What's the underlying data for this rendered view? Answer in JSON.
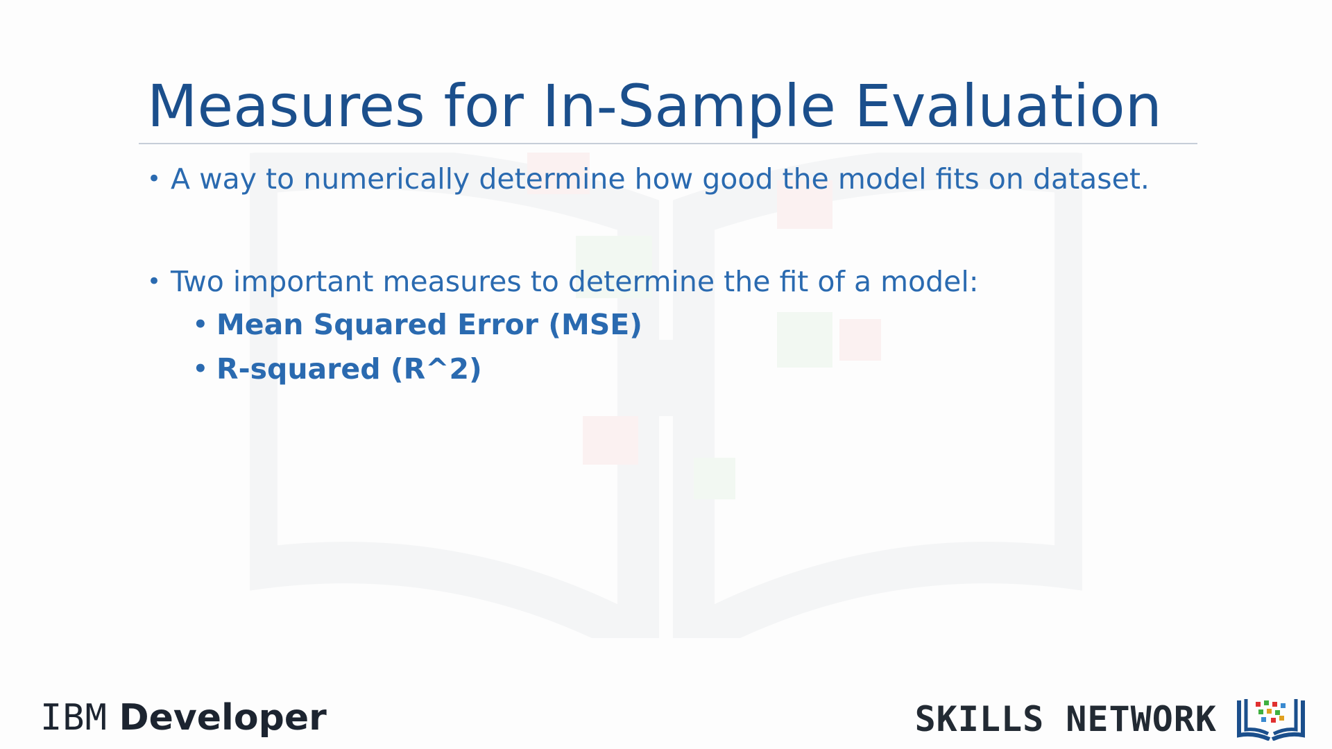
{
  "slide": {
    "title": "Measures for In-Sample Evaluation",
    "bullets": [
      {
        "text": "A way to numerically determine how good the model fits on dataset."
      },
      {
        "text": "Two important measures to determine the fit of a model:"
      }
    ],
    "sub_bullets": [
      {
        "text": "Mean Squared Error (MSE)"
      },
      {
        "text": "R-squared (R^2)"
      }
    ]
  },
  "footer": {
    "ibm_brand": "IBM",
    "ibm_product": "Developer",
    "skills_network": "SKILLS NETWORK"
  },
  "colors": {
    "title": "#1b4f8c",
    "body": "#2a6ab0",
    "logo_dark": "#1c2430"
  },
  "icons": {
    "watermark": "open-book-watermark-icon",
    "skills_logo": "open-book-logo-icon"
  }
}
